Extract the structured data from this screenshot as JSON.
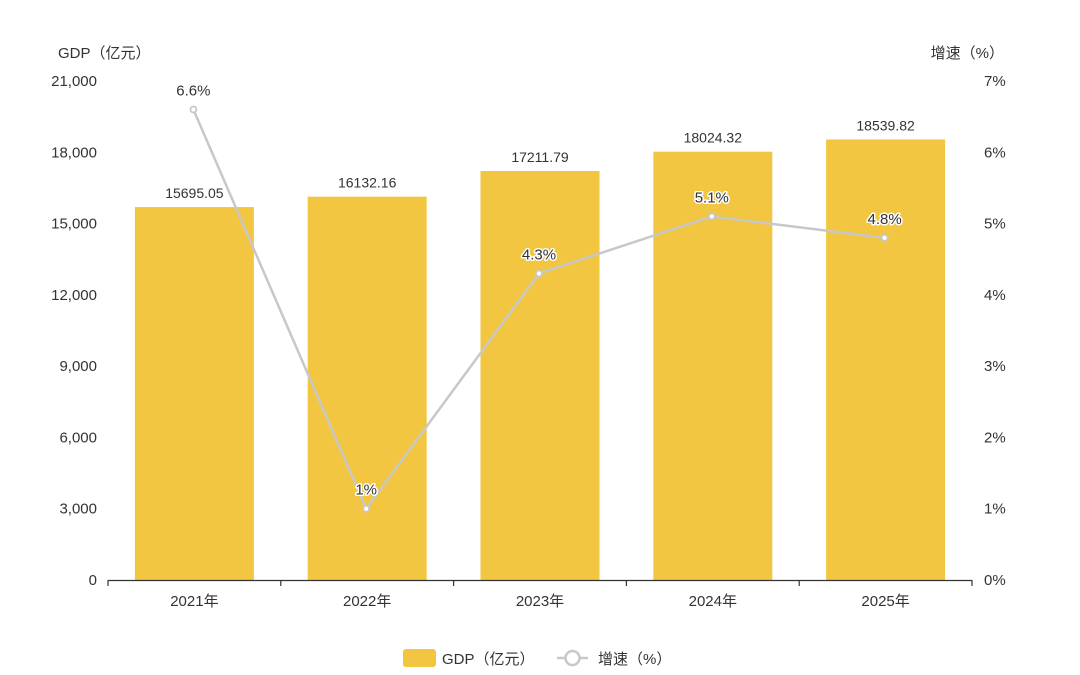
{
  "chart_data": {
    "type": "bar",
    "categories": [
      "2021年",
      "2022年",
      "2023年",
      "2024年",
      "2025年"
    ],
    "series": [
      {
        "name": "GDP（亿元）",
        "type": "bar",
        "axis": "left",
        "values": [
          15695.05,
          16132.16,
          17211.79,
          18024.32,
          18539.82
        ],
        "labels": [
          "15695.05",
          "16132.16",
          "17211.79",
          "18024.32",
          "18539.82"
        ],
        "color": "#F2C641"
      },
      {
        "name": "增速（%）",
        "type": "line",
        "axis": "right",
        "values": [
          6.6,
          1,
          4.3,
          5.1,
          4.8
        ],
        "labels": [
          "6.6%",
          "1%",
          "4.3%",
          "5.1%",
          "4.8%"
        ],
        "color": "#C8C8C8"
      }
    ],
    "ylabel_left": "GDP（亿元）",
    "ylabel_right": "增速（%）",
    "ylim_left": [
      0,
      21000
    ],
    "ylim_right": [
      0,
      7
    ],
    "yticks_left": [
      "0",
      "3,000",
      "6,000",
      "9,000",
      "12,000",
      "15,000",
      "18,000",
      "21,000"
    ],
    "yticks_right": [
      "0%",
      "1%",
      "2%",
      "3%",
      "4%",
      "5%",
      "6%",
      "7%"
    ],
    "grid": false,
    "legend_position": "bottom-center"
  }
}
